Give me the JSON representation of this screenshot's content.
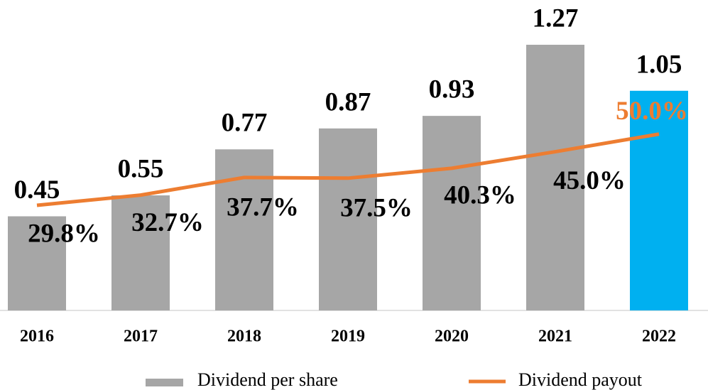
{
  "chart_data": {
    "type": "bar",
    "categories": [
      "2016",
      "2017",
      "2018",
      "2019",
      "2020",
      "2021",
      "2022"
    ],
    "series": [
      {
        "name": "Dividend per share",
        "type": "bar",
        "color": "#a6a6a6",
        "colors": [
          "#a6a6a6",
          "#a6a6a6",
          "#a6a6a6",
          "#a6a6a6",
          "#a6a6a6",
          "#a6a6a6",
          "#00b0f0"
        ],
        "values": [
          0.45,
          0.55,
          0.77,
          0.87,
          0.93,
          1.27,
          1.05
        ]
      },
      {
        "name": "Dividend payout",
        "type": "line",
        "axis": "y2",
        "color": "#ed7d31",
        "values": [
          29.8,
          32.7,
          37.7,
          37.5,
          40.3,
          45.0,
          50.0
        ],
        "value_labels": [
          "29.8%",
          "32.7%",
          "37.7%",
          "37.5%",
          "40.3%",
          "45.0%",
          "50.0%"
        ],
        "label_colors": [
          "#000000",
          "#000000",
          "#000000",
          "#000000",
          "#000000",
          "#000000",
          "#ed7d31"
        ]
      }
    ],
    "ylim": [
      0,
      1.45
    ],
    "y2lim": [
      0,
      86
    ],
    "legend": "bottom"
  }
}
